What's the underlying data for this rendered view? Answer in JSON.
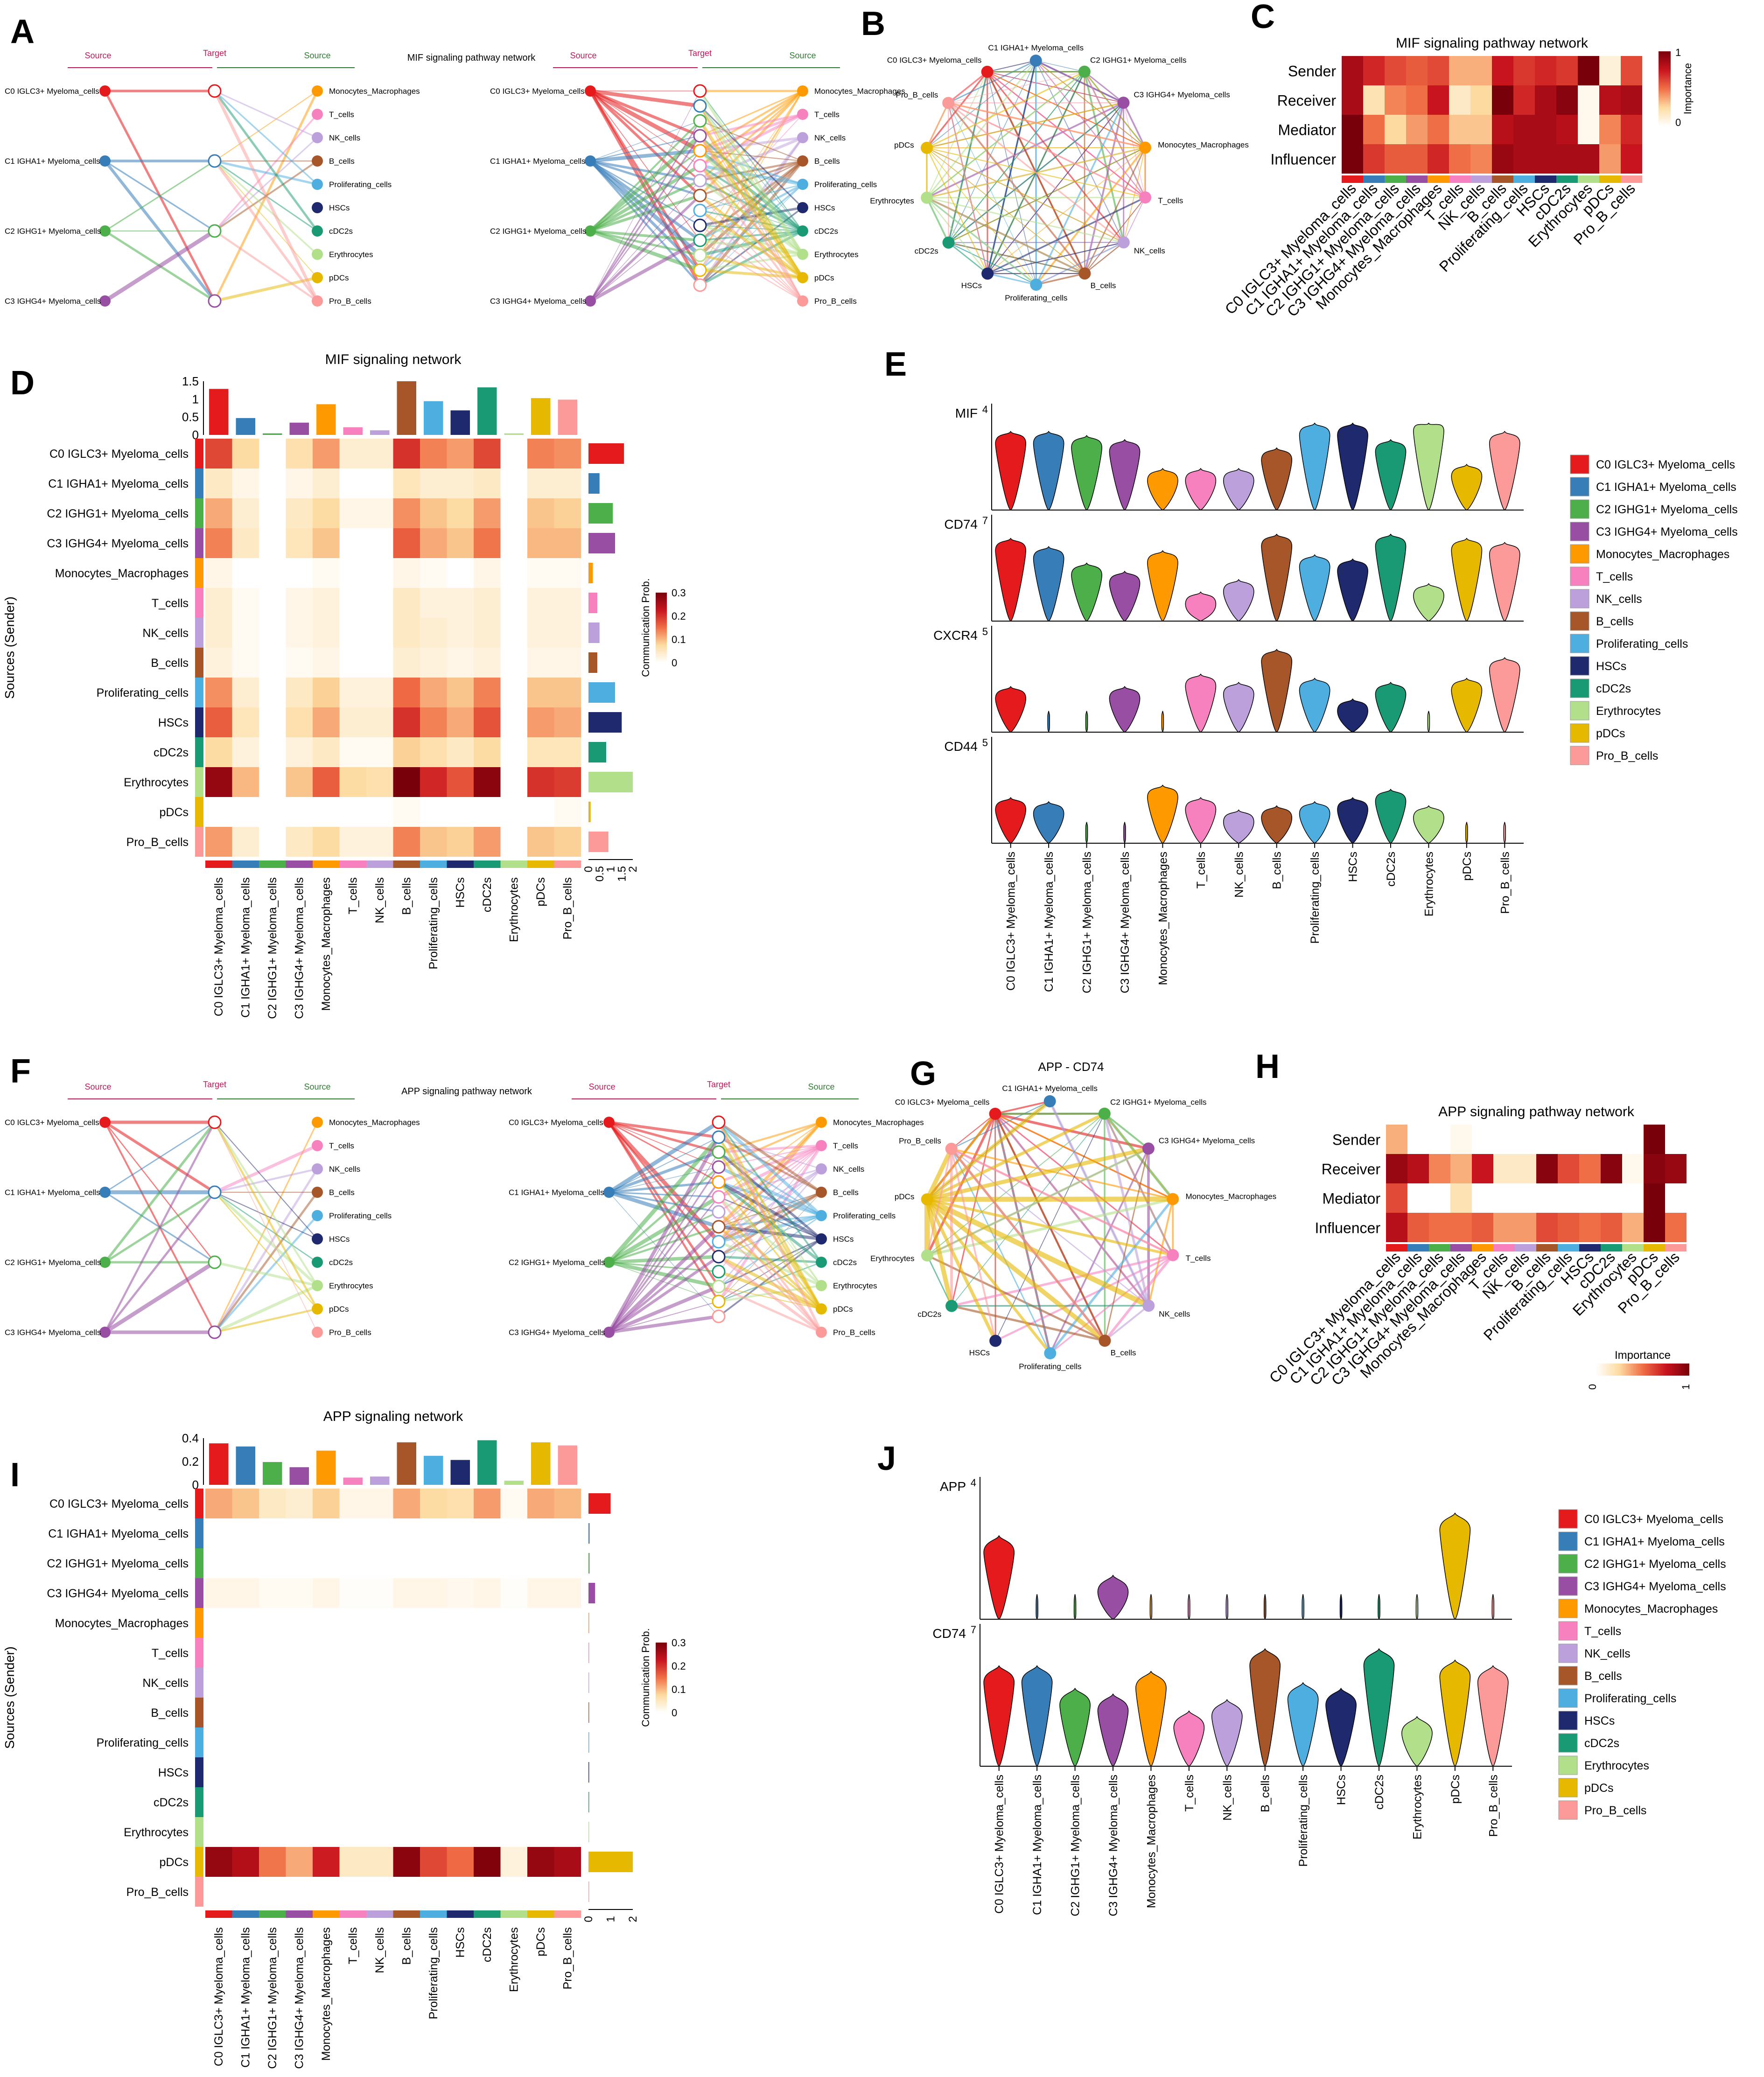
{
  "figure": {
    "panel_letters": [
      "A",
      "B",
      "C",
      "D",
      "E",
      "F",
      "G",
      "H",
      "I",
      "J"
    ]
  },
  "cell_types": [
    "C0 IGLC3+ Myeloma_cells",
    "C1 IGHA1+ Myeloma_cells",
    "C2 IGHG1+ Myeloma_cells",
    "C3 IGHG4+ Myeloma_cells",
    "Monocytes_Macrophages",
    "T_cells",
    "NK_cells",
    "B_cells",
    "Proliferating_cells",
    "HSCs",
    "cDC2s",
    "Erythrocytes",
    "pDCs",
    "Pro_B_cells"
  ],
  "colors": [
    "#e41a1c",
    "#377eb8",
    "#4daf4a",
    "#984ea3",
    "#ff9900",
    "#f781bf",
    "#bca0dc",
    "#a65628",
    "#4eaee0",
    "#1f2a6e",
    "#1a9a74",
    "#b2df8a",
    "#e6b800",
    "#fb9a99"
  ],
  "hierarchy": {
    "source_label": "Source",
    "target_label": "Target",
    "mif_title": "MIF signaling pathway network",
    "app_title": "APP signaling pathway network",
    "left_groups": [
      "C0 IGLC3+ Myeloma_cells",
      "C1 IGHA1+ Myeloma_cells",
      "C2 IGHG1+ Myeloma_cells",
      "C3 IGHG4+ Myeloma_cells"
    ],
    "right_groups": [
      "Monocytes_Macrophages",
      "T_cells",
      "NK_cells",
      "B_cells",
      "Proliferating_cells",
      "HSCs",
      "cDC2s",
      "Erythrocytes",
      "pDCs",
      "Pro_B_cells"
    ]
  },
  "circle_G_title": "APP - CD74",
  "heatmap_roles": {
    "rows": [
      "Sender",
      "Receiver",
      "Mediator",
      "Influencer"
    ],
    "legend_title": "Importance",
    "legend_ticks": [
      "0",
      "1"
    ],
    "mif": {
      "title": "MIF signaling pathway network",
      "values": [
        [
          0.85,
          0.7,
          0.6,
          0.55,
          0.6,
          0.35,
          0.35,
          0.75,
          0.65,
          0.7,
          0.65,
          1.0,
          0.1,
          0.6
        ],
        [
          0.85,
          0.2,
          0.45,
          0.5,
          0.75,
          0.15,
          0.25,
          1.0,
          0.7,
          0.85,
          0.95,
          0.05,
          0.8,
          0.85
        ],
        [
          1.0,
          0.5,
          0.25,
          0.4,
          0.5,
          0.3,
          0.3,
          0.8,
          0.85,
          0.85,
          0.8,
          0.05,
          0.45,
          0.7
        ],
        [
          1.0,
          0.65,
          0.55,
          0.55,
          0.7,
          0.5,
          0.45,
          0.9,
          0.85,
          0.85,
          0.85,
          0.85,
          0.4,
          0.75
        ]
      ]
    },
    "app": {
      "title": "APP signaling pathway network",
      "values": [
        [
          0.35,
          0.0,
          0.0,
          0.05,
          0.0,
          0.0,
          0.0,
          0.0,
          0.0,
          0.0,
          0.0,
          0.0,
          1.0,
          0.0
        ],
        [
          0.9,
          0.8,
          0.45,
          0.35,
          0.75,
          0.15,
          0.15,
          0.95,
          0.6,
          0.5,
          0.95,
          0.05,
          0.95,
          0.9
        ],
        [
          0.6,
          0.0,
          0.0,
          0.2,
          0.0,
          0.0,
          0.0,
          0.0,
          0.0,
          0.0,
          0.0,
          0.0,
          1.0,
          0.0
        ],
        [
          0.8,
          0.55,
          0.5,
          0.5,
          0.55,
          0.4,
          0.4,
          0.6,
          0.55,
          0.5,
          0.55,
          0.35,
          1.0,
          0.5
        ]
      ]
    }
  },
  "heatmap_comm": {
    "ylabel": "Sources (Sender)",
    "legend_title": "Communication Prob.",
    "legend_ticks": [
      "0.3",
      "0.2",
      "0.1",
      "0"
    ],
    "mif": {
      "title": "MIF signaling network",
      "top_ticks": [
        "1.5",
        "1",
        "0.5",
        "0"
      ],
      "top_values": [
        1.5,
        0.55,
        0.05,
        0.4,
        1.0,
        0.25,
        0.15,
        1.75,
        1.1,
        0.8,
        1.55,
        0.05,
        1.2,
        1.15
      ],
      "right_ticks": [
        "0",
        "0.5",
        "1",
        "1.5",
        "2"
      ],
      "right_values": [
        1.6,
        0.5,
        1.1,
        1.2,
        0.2,
        0.4,
        0.5,
        0.4,
        1.2,
        1.5,
        0.8,
        2.0,
        0.1,
        0.9
      ],
      "values": [
        [
          0.2,
          0.08,
          0,
          0.07,
          0.13,
          0.04,
          0.04,
          0.22,
          0.15,
          0.13,
          0.2,
          0,
          0.15,
          0.14
        ],
        [
          0.05,
          0.02,
          0,
          0.02,
          0.04,
          0,
          0,
          0.06,
          0.04,
          0.04,
          0.05,
          0,
          0.04,
          0.04
        ],
        [
          0.12,
          0.04,
          0,
          0.05,
          0.08,
          0.02,
          0.02,
          0.14,
          0.1,
          0.08,
          0.13,
          0,
          0.1,
          0.09
        ],
        [
          0.15,
          0.05,
          0,
          0.06,
          0.1,
          0,
          0,
          0.18,
          0.12,
          0.1,
          0.16,
          0,
          0.11,
          0.11
        ],
        [
          0.02,
          0,
          0,
          0,
          0.01,
          0,
          0,
          0.02,
          0.01,
          0,
          0.02,
          0,
          0.01,
          0.01
        ],
        [
          0.04,
          0.01,
          0,
          0.02,
          0.03,
          0,
          0,
          0.05,
          0.03,
          0.03,
          0.04,
          0,
          0.03,
          0.03
        ],
        [
          0.04,
          0.01,
          0,
          0.02,
          0.03,
          0,
          0,
          0.05,
          0.04,
          0.03,
          0.04,
          0,
          0.03,
          0.03
        ],
        [
          0.03,
          0.01,
          0,
          0.01,
          0.02,
          0,
          0,
          0.04,
          0.03,
          0.02,
          0.03,
          0,
          0.02,
          0.02
        ],
        [
          0.14,
          0.04,
          0,
          0.05,
          0.09,
          0.03,
          0.03,
          0.17,
          0.12,
          0.1,
          0.15,
          0,
          0.1,
          0.1
        ],
        [
          0.18,
          0.06,
          0,
          0.07,
          0.12,
          0.04,
          0.04,
          0.22,
          0.15,
          0.12,
          0.19,
          0,
          0.13,
          0.12
        ],
        [
          0.08,
          0.03,
          0,
          0.03,
          0.05,
          0.01,
          0.01,
          0.09,
          0.07,
          0.05,
          0.08,
          0,
          0.06,
          0.06
        ],
        [
          0.3,
          0.11,
          0,
          0.1,
          0.18,
          0.08,
          0.07,
          0.33,
          0.23,
          0.19,
          0.31,
          0,
          0.22,
          0.21
        ],
        [
          0,
          0,
          0,
          0,
          0,
          0,
          0,
          0.01,
          0,
          0,
          0,
          0,
          0,
          0.01
        ],
        [
          0.13,
          0.04,
          0,
          0.05,
          0.08,
          0.03,
          0.03,
          0.15,
          0.1,
          0.09,
          0.13,
          0,
          0.1,
          0.09
        ]
      ]
    },
    "app": {
      "title": "APP signaling network",
      "top_ticks": [
        "0.4",
        "0.2",
        "0"
      ],
      "top_values": [
        0.4,
        0.37,
        0.22,
        0.17,
        0.33,
        0.07,
        0.08,
        0.41,
        0.28,
        0.24,
        0.43,
        0.04,
        0.41,
        0.38
      ],
      "right_ticks": [
        "0",
        "1",
        "2"
      ],
      "right_values": [
        1.0,
        0.05,
        0.05,
        0.3,
        0.03,
        0.03,
        0.03,
        0.03,
        0.03,
        0.03,
        0.03,
        0.03,
        2.0,
        0.03
      ],
      "values": [
        [
          0.12,
          0.1,
          0.05,
          0.04,
          0.09,
          0.02,
          0.02,
          0.12,
          0.08,
          0.07,
          0.13,
          0.01,
          0.12,
          0.11
        ],
        [
          0,
          0,
          0,
          0,
          0,
          0,
          0,
          0,
          0,
          0,
          0,
          0,
          0,
          0
        ],
        [
          0,
          0,
          0,
          0,
          0,
          0,
          0,
          0,
          0,
          0,
          0,
          0,
          0,
          0
        ],
        [
          0.02,
          0.02,
          0.01,
          0.01,
          0.02,
          0.005,
          0.005,
          0.02,
          0.02,
          0.015,
          0.02,
          0.005,
          0.02,
          0.02
        ],
        [
          0,
          0,
          0,
          0,
          0,
          0,
          0,
          0,
          0,
          0,
          0,
          0,
          0,
          0
        ],
        [
          0,
          0,
          0,
          0,
          0,
          0,
          0,
          0,
          0,
          0,
          0,
          0,
          0,
          0
        ],
        [
          0,
          0,
          0,
          0,
          0,
          0,
          0,
          0,
          0,
          0,
          0,
          0,
          0,
          0
        ],
        [
          0,
          0,
          0,
          0,
          0,
          0,
          0,
          0,
          0,
          0,
          0,
          0,
          0,
          0
        ],
        [
          0,
          0,
          0,
          0,
          0,
          0,
          0,
          0,
          0,
          0,
          0,
          0,
          0,
          0
        ],
        [
          0,
          0,
          0,
          0,
          0,
          0,
          0,
          0,
          0,
          0,
          0,
          0,
          0,
          0
        ],
        [
          0,
          0,
          0,
          0,
          0,
          0,
          0,
          0,
          0,
          0,
          0,
          0,
          0,
          0
        ],
        [
          0,
          0,
          0,
          0,
          0,
          0,
          0,
          0,
          0,
          0,
          0,
          0,
          0,
          0
        ],
        [
          0.3,
          0.27,
          0.16,
          0.12,
          0.24,
          0.05,
          0.05,
          0.31,
          0.2,
          0.17,
          0.32,
          0.03,
          0.3,
          0.28
        ],
        [
          0,
          0,
          0,
          0,
          0,
          0,
          0,
          0,
          0,
          0,
          0,
          0,
          0,
          0
        ]
      ]
    }
  },
  "violin": {
    "E": {
      "genes": [
        "MIF",
        "CD74",
        "CXCR4",
        "CD44"
      ],
      "ymax": [
        "4",
        "7",
        "5",
        "5"
      ],
      "expr": [
        [
          0.75,
          0.75,
          0.7,
          0.65,
          0.3,
          0.3,
          0.3,
          0.55,
          0.85,
          0.85,
          0.65,
          0.9,
          0.35,
          0.75
        ],
        [
          0.8,
          0.7,
          0.5,
          0.4,
          0.65,
          0.15,
          0.3,
          0.85,
          0.6,
          0.55,
          0.85,
          0.25,
          0.8,
          0.75
        ],
        [
          0.35,
          0.05,
          0.05,
          0.35,
          0.05,
          0.5,
          0.4,
          0.8,
          0.45,
          0.2,
          0.4,
          0.05,
          0.45,
          0.7
        ],
        [
          0.35,
          0.3,
          0.05,
          0.05,
          0.5,
          0.35,
          0.2,
          0.25,
          0.3,
          0.35,
          0.45,
          0.25,
          0.05,
          0.05
        ]
      ]
    },
    "J": {
      "genes": [
        "APP",
        "CD74"
      ],
      "ymax": [
        "4",
        "7"
      ],
      "expr": [
        [
          0.55,
          0.03,
          0.03,
          0.2,
          0.03,
          0.03,
          0.03,
          0.03,
          0.03,
          0.03,
          0.03,
          0.03,
          0.75,
          0.03
        ],
        [
          0.7,
          0.7,
          0.5,
          0.45,
          0.65,
          0.3,
          0.4,
          0.85,
          0.55,
          0.5,
          0.85,
          0.25,
          0.75,
          0.7
        ]
      ]
    }
  }
}
